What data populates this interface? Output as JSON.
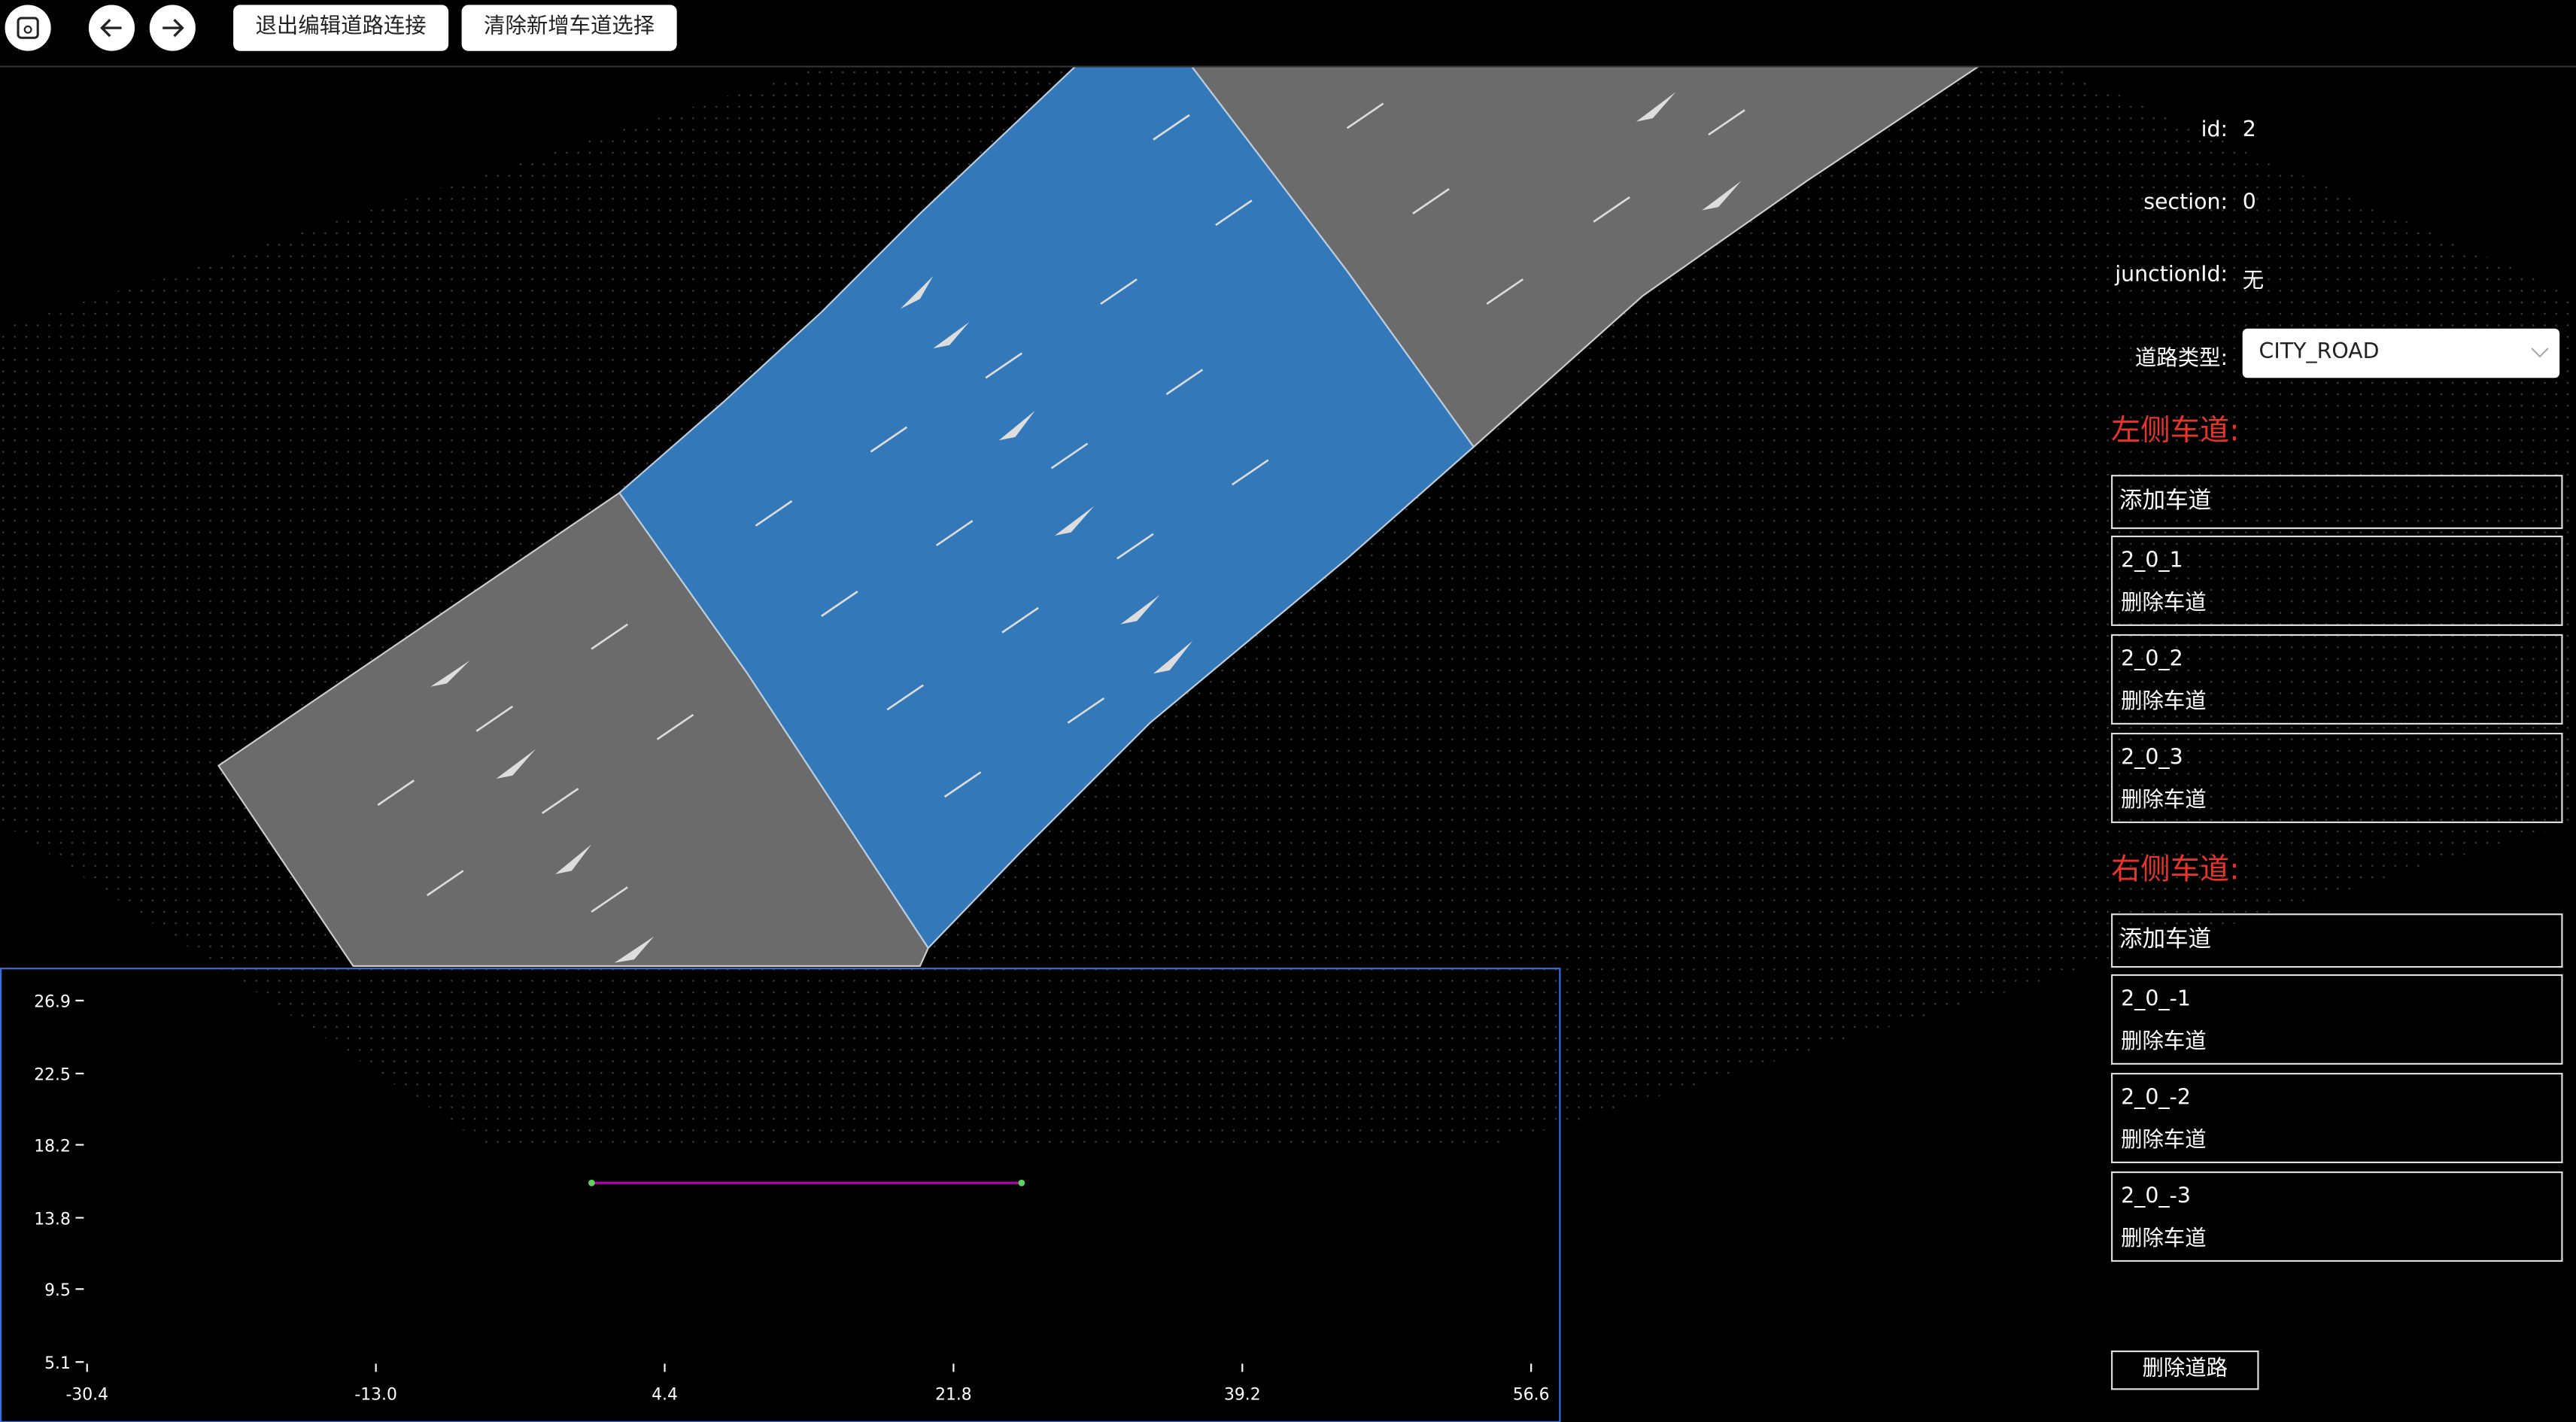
{
  "toolbar": {
    "buttons": [
      "退出编辑道路连接",
      "清除新增车道选择"
    ]
  },
  "panel": {
    "fields": [
      {
        "label": "id:",
        "value": "2"
      },
      {
        "label": "section:",
        "value": "0"
      },
      {
        "label": "junctionId:",
        "value": "无"
      }
    ],
    "road_type": {
      "label": "道路类型:",
      "value": "CITY_ROAD"
    },
    "left_title": "左侧车道:",
    "left_add": "添加车道",
    "left_lanes": [
      {
        "id": "2_0_1",
        "action": "删除车道"
      },
      {
        "id": "2_0_2",
        "action": "删除车道"
      },
      {
        "id": "2_0_3",
        "action": "删除车道"
      }
    ],
    "right_title": "右侧车道:",
    "right_add": "添加车道",
    "right_lanes": [
      {
        "id": "2_0_-1",
        "action": "删除车道"
      },
      {
        "id": "2_0_-2",
        "action": "删除车道"
      },
      {
        "id": "2_0_-3",
        "action": "删除车道"
      }
    ],
    "delete_road": "删除道路"
  },
  "elevation_chart": {
    "type": "line",
    "x": [
      0,
      25.9
    ],
    "values": [
      15.9,
      15.9
    ],
    "color": "#b000b0",
    "point_color": "#5fd35f",
    "xlim": [
      -30.4,
      56.6
    ],
    "ylim": [
      5.1,
      26.9
    ],
    "xticks": [
      -30.4,
      {
        "value": -13,
        "label": "-13.0"
      },
      4.4,
      21.8,
      39.2,
      56.6
    ],
    "yticks": [
      26.9,
      22.5,
      18.2,
      13.8,
      9.5,
      5.1
    ]
  }
}
